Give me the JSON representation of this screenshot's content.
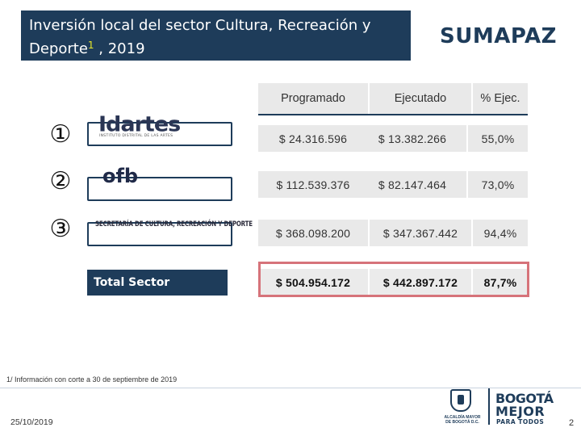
{
  "title": {
    "line1": "Inversión local del sector Cultura, Recreación y",
    "line2": "Deporte",
    "sup": "1",
    "line2_tail": " , 2019"
  },
  "region": "SUMAPAZ",
  "table": {
    "headers": [
      "Programado",
      "Ejecutado",
      "% Ejec."
    ],
    "rows": [
      {
        "marker": "①",
        "logo": "Idartes",
        "logo_sub": "INSTITUTO DISTRITAL DE LAS ARTES",
        "values": [
          "$ 24.316.596",
          "$ 13.382.266",
          "55,0%"
        ]
      },
      {
        "marker": "②",
        "logo": "ofb",
        "values": [
          "$ 112.539.376",
          "$ 82.147.464",
          "73,0%"
        ]
      },
      {
        "marker": "③",
        "logo": "SECRETARÍA DE CULTURA, RECREACIÓN Y DEPORTE",
        "values": [
          "$ 368.098.200",
          "$ 347.367.442",
          "94,4%"
        ]
      }
    ],
    "total": {
      "label": "Total Sector",
      "values": [
        "$ 504.954.172",
        "$ 442.897.172",
        "87,7%"
      ]
    }
  },
  "footnote": "1/ Información  con corte a 30 de septiembre de 2019",
  "date": "25/10/2019",
  "page_number": "2",
  "brand": {
    "alcaldia": "ALCALDÍA MAYOR DE BOGOTÁ D.C.",
    "line1": "BOGOTÁ",
    "line2": "MEJOR",
    "line3": "PARA TODOS"
  },
  "colors": {
    "primary": "#1e3c5a",
    "highlight": "#d6737a",
    "accent": "#e6e62a"
  }
}
